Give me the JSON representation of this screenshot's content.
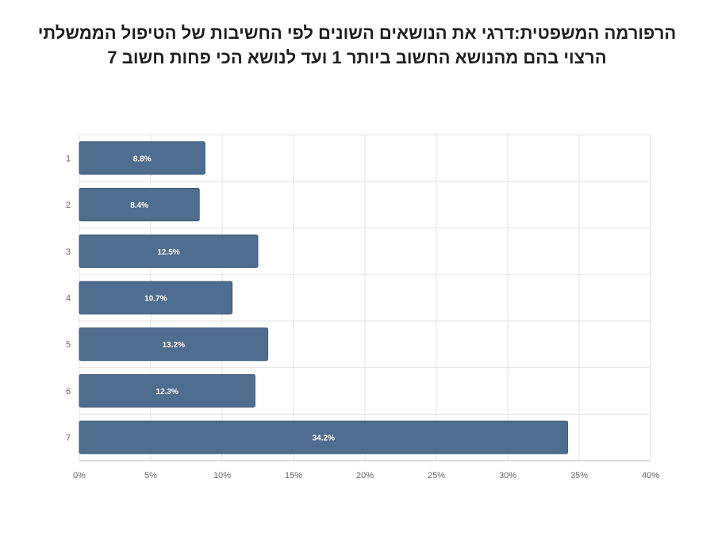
{
  "title": {
    "line1": "הרפורמה המשפטית:דרגי את הנושאים השונים לפי החשיבות של הטיפול הממשלתי",
    "line2": "הרצוי בהם  מהנושא החשוב ביותר 1 ועד לנושא הכי פחות חשוב 7"
  },
  "chart_data": {
    "type": "bar",
    "orientation": "horizontal",
    "categories": [
      "1",
      "2",
      "3",
      "4",
      "5",
      "6",
      "7"
    ],
    "values": [
      8.8,
      8.4,
      12.5,
      10.7,
      13.2,
      12.3,
      34.2
    ],
    "value_labels": [
      "8.8%",
      "8.4%",
      "12.5%",
      "10.7%",
      "13.2%",
      "12.3%",
      "34.2%"
    ],
    "xlim": [
      0,
      40
    ],
    "x_ticks": [
      0,
      5,
      10,
      15,
      20,
      25,
      30,
      35,
      40
    ],
    "x_tick_labels": [
      "0%",
      "5%",
      "10%",
      "15%",
      "20%",
      "25%",
      "30%",
      "35%",
      "40%"
    ],
    "grid": true,
    "bar_color": "#4f6d8f",
    "bar_edge_color": "#3e5a78",
    "grid_color": "#e3e3e3",
    "axis_color": "#bdbdbd",
    "label_color": "#ffffff"
  }
}
